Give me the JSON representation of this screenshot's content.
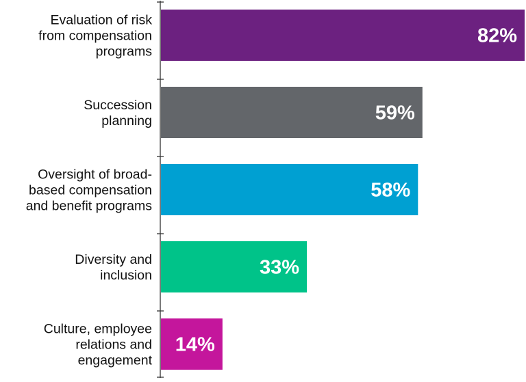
{
  "chart_data": {
    "type": "bar",
    "orientation": "horizontal",
    "categories": [
      [
        "Evaluation of risk",
        "from compensation",
        "programs"
      ],
      [
        "Succession",
        "planning"
      ],
      [
        "Oversight of broad-",
        "based compensation",
        "and benefit programs"
      ],
      [
        "Diversity and",
        "inclusion"
      ],
      [
        "Culture, employee",
        "relations and",
        "engagement"
      ]
    ],
    "values": [
      82,
      59,
      58,
      33,
      14
    ],
    "value_labels": [
      "82%",
      "59%",
      "58%",
      "33%",
      "14%"
    ],
    "colors": [
      "#6c2180",
      "#63666a",
      "#00a0d2",
      "#00c389",
      "#c4169c"
    ],
    "xlim": [
      0,
      82
    ],
    "grid": false,
    "legend": "none",
    "title": "",
    "xlabel": "",
    "ylabel": ""
  }
}
